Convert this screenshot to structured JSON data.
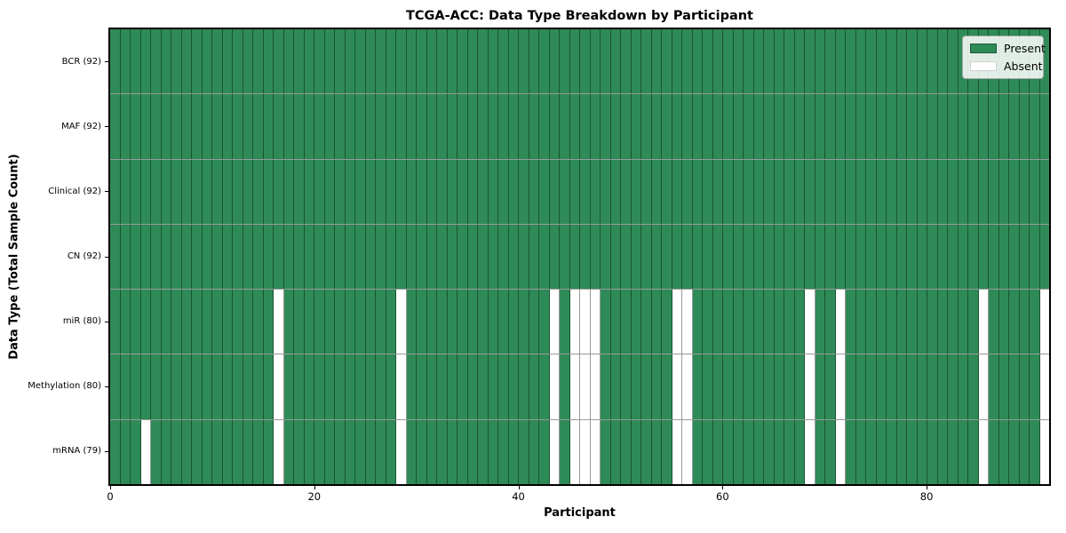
{
  "title": "TCGA-ACC: Data Type Breakdown by Participant",
  "xlabel": "Participant",
  "ylabel": "Data Type (Total Sample Count)",
  "legend": {
    "entries": [
      "Present",
      "Absent"
    ]
  },
  "colors": {
    "present": "#2e8b57",
    "absent": "#ffffff",
    "grid": "rgba(0,0,0,0.40)",
    "spine": "#000000"
  },
  "x_ticks": [
    0,
    20,
    40,
    60,
    80
  ],
  "chart_data": {
    "type": "heatmap",
    "title": "TCGA-ACC: Data Type Breakdown by Participant",
    "xlabel": "Participant",
    "ylabel": "Data Type (Total Sample Count)",
    "x_range": [
      0,
      92
    ],
    "n_participants": 92,
    "x_tick_values": [
      0,
      20,
      40,
      60,
      80
    ],
    "legend_entries": [
      {
        "label": "Present",
        "color": "#2e8b57"
      },
      {
        "label": "Absent",
        "color": "#ffffff"
      }
    ],
    "legend_position": "upper right",
    "grid": true,
    "rows": [
      {
        "label": "BCR (92)",
        "data_type": "BCR",
        "total_samples": 92,
        "absent_participants": []
      },
      {
        "label": "MAF (92)",
        "data_type": "MAF",
        "total_samples": 92,
        "absent_participants": []
      },
      {
        "label": "Clinical (92)",
        "data_type": "Clinical",
        "total_samples": 92,
        "absent_participants": []
      },
      {
        "label": "CN (92)",
        "data_type": "CN",
        "total_samples": 92,
        "absent_participants": []
      },
      {
        "label": "miR (80)",
        "data_type": "miR",
        "total_samples": 80,
        "absent_participants": [
          16,
          28,
          43,
          45,
          46,
          47,
          55,
          56,
          68,
          71,
          85,
          91
        ]
      },
      {
        "label": "Methylation (80)",
        "data_type": "Methylation",
        "total_samples": 80,
        "absent_participants": [
          16,
          28,
          43,
          45,
          46,
          47,
          55,
          56,
          68,
          71,
          85,
          91
        ]
      },
      {
        "label": "mRNA (79)",
        "data_type": "mRNA",
        "total_samples": 79,
        "absent_participants": [
          3,
          16,
          28,
          43,
          45,
          46,
          47,
          55,
          56,
          68,
          71,
          85,
          91
        ]
      }
    ]
  }
}
